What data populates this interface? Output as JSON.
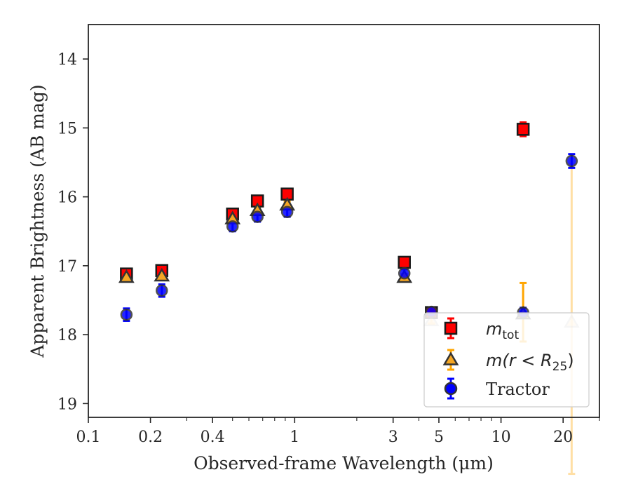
{
  "chart_data": {
    "type": "scatter",
    "xlabel": "Observed-frame Wavelength (μm)",
    "ylabel": "Apparent Brightness (AB mag)",
    "xscale": "log",
    "yaxis_inverted": true,
    "xlim": [
      0.1,
      30
    ],
    "ylim": [
      19.2,
      13.5
    ],
    "xticks": [
      {
        "value": 0.1,
        "label": "0.1"
      },
      {
        "value": 0.2,
        "label": "0.2"
      },
      {
        "value": 0.4,
        "label": "0.4"
      },
      {
        "value": 1,
        "label": "1"
      },
      {
        "value": 3,
        "label": "3"
      },
      {
        "value": 5,
        "label": "5"
      },
      {
        "value": 10,
        "label": "10"
      },
      {
        "value": 20,
        "label": "20"
      }
    ],
    "yticks": [
      {
        "value": 14,
        "label": "14"
      },
      {
        "value": 15,
        "label": "15"
      },
      {
        "value": 16,
        "label": "16"
      },
      {
        "value": 17,
        "label": "17"
      },
      {
        "value": 18,
        "label": "18"
      },
      {
        "value": 19,
        "label": "19"
      }
    ],
    "grid": false,
    "legend_position": "lower-right",
    "series": [
      {
        "key": "m_tot",
        "label_main": "m",
        "label_sub": "tot",
        "marker": "square",
        "face_color": "#ff0000",
        "edge_color": "#1a1a1a",
        "err_color": "#ff0000",
        "points": [
          {
            "x": 0.153,
            "y": 17.12,
            "err": 0.06
          },
          {
            "x": 0.227,
            "y": 17.07,
            "err": 0.05
          },
          {
            "x": 0.5,
            "y": 16.25,
            "err": 0.06
          },
          {
            "x": 0.66,
            "y": 16.06,
            "err": 0.05
          },
          {
            "x": 0.92,
            "y": 15.96,
            "err": 0.05
          },
          {
            "x": 3.4,
            "y": 16.95,
            "err": 0.06
          },
          {
            "x": 4.6,
            "y": 17.68,
            "err": 0.04
          },
          {
            "x": 12.8,
            "y": 15.02,
            "err": 0.1
          }
        ]
      },
      {
        "key": "m_r25",
        "label_text": "m(r < R25)",
        "label_pre": "m(r < R",
        "label_sub": "25",
        "label_post": ")",
        "marker": "triangle",
        "face_color": "#f5a623",
        "edge_color": "#333333",
        "err_color": "#ffa500",
        "points": [
          {
            "x": 0.153,
            "y": 17.17,
            "err": 0.04,
            "faded": false
          },
          {
            "x": 0.227,
            "y": 17.15,
            "err": 0.04,
            "faded": false
          },
          {
            "x": 0.5,
            "y": 16.32,
            "err": 0.05,
            "faded": false
          },
          {
            "x": 0.66,
            "y": 16.2,
            "err": 0.05,
            "faded": false
          },
          {
            "x": 0.92,
            "y": 16.12,
            "err": 0.05,
            "faded": false
          },
          {
            "x": 3.4,
            "y": 17.17,
            "err": 0.05,
            "faded": false
          },
          {
            "x": 4.6,
            "y": 17.8,
            "err": 0.04,
            "faded": true
          },
          {
            "x": 12.8,
            "y": 17.7,
            "err_up": 0.45,
            "err_down": 0.4,
            "faded": false
          },
          {
            "x": 22.0,
            "y": 17.82,
            "err_up": 2.3,
            "err_down": 2.2,
            "faded": true
          }
        ]
      },
      {
        "key": "tractor",
        "label_text": "Tractor",
        "marker": "circle",
        "face_color": "#0000ff",
        "edge_color": "#333333",
        "err_color": "#0000ff",
        "points": [
          {
            "x": 0.153,
            "y": 17.71,
            "err": 0.09
          },
          {
            "x": 0.227,
            "y": 17.36,
            "err": 0.09
          },
          {
            "x": 0.5,
            "y": 16.43,
            "err": 0.07
          },
          {
            "x": 0.66,
            "y": 16.29,
            "err": 0.07
          },
          {
            "x": 0.92,
            "y": 16.22,
            "err": 0.07
          },
          {
            "x": 3.4,
            "y": 17.11,
            "err": 0.06
          },
          {
            "x": 4.6,
            "y": 17.67,
            "err": 0.05
          },
          {
            "x": 12.8,
            "y": 17.68,
            "err": 0.07
          },
          {
            "x": 22.0,
            "y": 15.48,
            "err": 0.1
          }
        ]
      }
    ]
  }
}
